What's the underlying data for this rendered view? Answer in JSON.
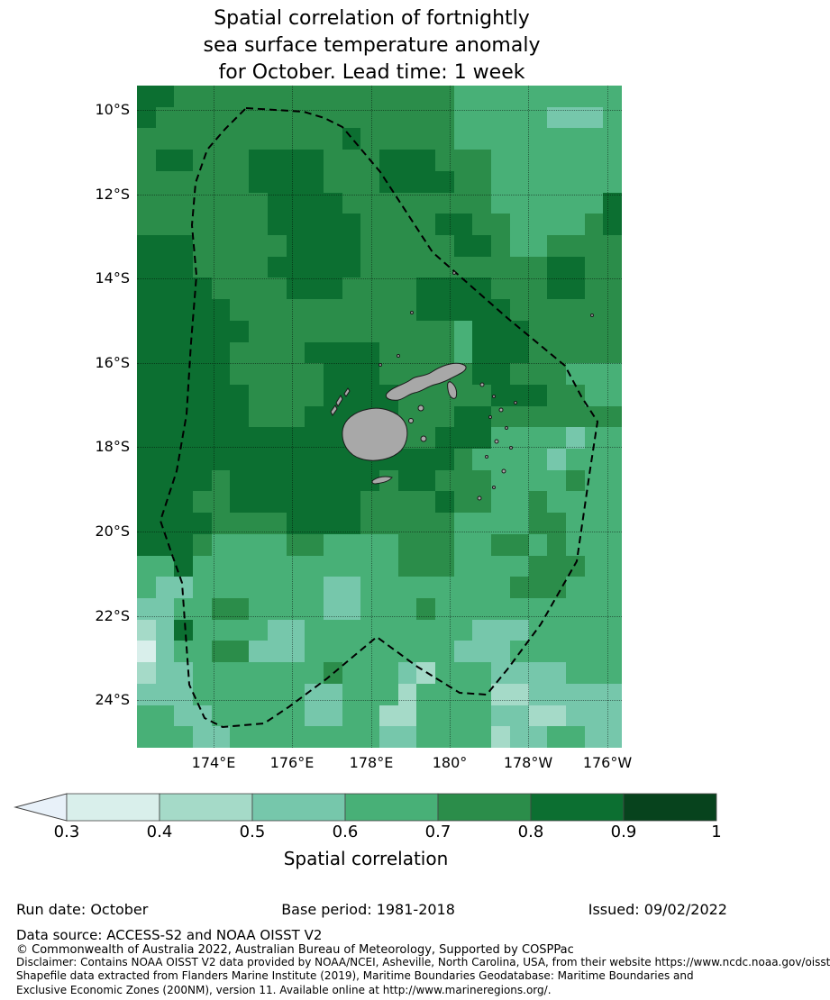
{
  "title": {
    "line1": "Spatial correlation of fortnightly",
    "line2": "sea surface temperature anomaly",
    "line3": "for October. Lead time: 1 week"
  },
  "map": {
    "lat_range": [
      9.42,
      25.13
    ],
    "lon_range": [
      172.06,
      184.37
    ],
    "lat_ticks": [
      {
        "label": "10°S",
        "value": 10
      },
      {
        "label": "12°S",
        "value": 12
      },
      {
        "label": "14°S",
        "value": 14
      },
      {
        "label": "16°S",
        "value": 16
      },
      {
        "label": "18°S",
        "value": 18
      },
      {
        "label": "20°S",
        "value": 20
      },
      {
        "label": "22°S",
        "value": 22
      },
      {
        "label": "24°S",
        "value": 24
      }
    ],
    "lon_ticks": [
      {
        "label": "174°E",
        "value": 174
      },
      {
        "label": "176°E",
        "value": 176
      },
      {
        "label": "178°E",
        "value": 178
      },
      {
        "label": "180°",
        "value": 180
      },
      {
        "label": "178°W",
        "value": 182
      },
      {
        "label": "176°W",
        "value": 184
      }
    ],
    "land_color": "#a8a8a8",
    "land_outline_color": "#1a1a1a",
    "eez_boundary_color": "#000000",
    "grid_rows": [
      "66555555555555555444444444",
      "65555555555555555444443334",
      "55555555555655555444444444",
      "56655566665556665554444444",
      "55555566665556666554444444",
      "55555556666555555554444446",
      "55555556666655556655444456",
      "66655555666655555665445555",
      "66655556666655555555556655",
      "66665555666555566665556655",
      "66666555555555566666555555",
      "66666655555555555466655555",
      "66666555566665555466655555",
      "66666555556665555566555444",
      "66666655556666555556665544",
      "66666655566666555665555555",
      "66666666666666556664444344",
      "66666666666666666544443444",
      "66665666666665665554444544",
      "66655666666655556554454444",
      "66665555666655555444455444",
      "66654444554444555445545444",
      "44644444444444555444455544",
      "43344444443344444444555444",
      "33445544443344454444444444",
      "23644443344444444433344444",
      "13445533344444444333444444",
      "23344444445444324443333444",
      "33344444433444244442233333",
      "44334444433442244443322333",
      "44433444444443344442334433"
    ]
  },
  "colorbar": {
    "label": "Spatial correlation",
    "ticks": [
      "0.3",
      "0.4",
      "0.5",
      "0.6",
      "0.7",
      "0.8",
      "0.9",
      "1"
    ],
    "segment_colors": [
      "#d9efeb",
      "#a5dac8",
      "#76c7ab",
      "#48b077",
      "#2b8d4a",
      "#0c6f31",
      "#07431d"
    ],
    "under_arrow_color": "#e8f1f9",
    "outline_color": "#444444"
  },
  "footer": {
    "run_date": "Run date: October",
    "base_period": "Base period: 1981-2018",
    "issued": "Issued: 09/02/2022",
    "data_source": "Data source: ACCESS-S2 and NOAA OISST V2",
    "copyright": "© Commonwealth of Australia 2022, Australian Bureau of Meteorology, Supported by COSPPac",
    "disclaimer": "Disclaimer: Contains NOAA OISST V2 data provided by NOAA/NCEI, Asheville, North Carolina, USA, from their website https://www.ncdc.noaa.gov/oisst",
    "shapefile": "Shapefile data extracted from Flanders Marine Institute (2019), Maritime Boundaries Geodatabase: Maritime Boundaries and",
    "eez_note": "Exclusive Economic Zones (200NM), version 11. Available online at http://www.marineregions.org/."
  }
}
